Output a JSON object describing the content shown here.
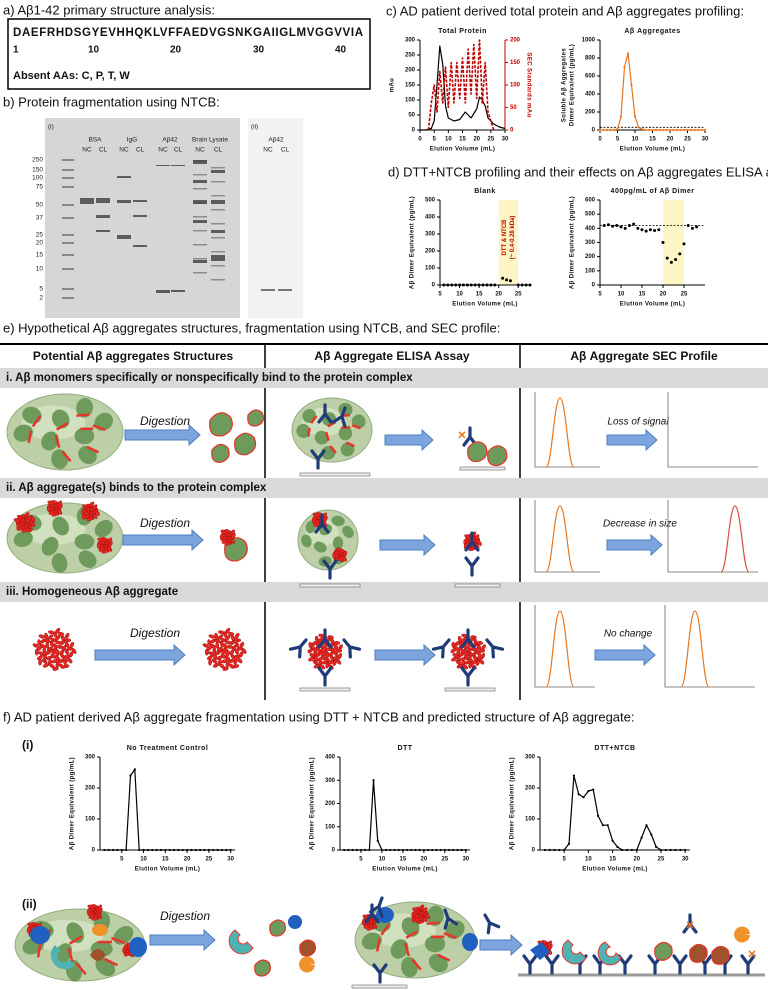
{
  "panel_a": {
    "title": "a) Aβ1-42 primary structure analysis:",
    "sequence": "DAEFRHDSGYEVHHQKLVFFAEDVGSNKGAIIGLMVGGVVIA",
    "positions": [
      "1",
      "10",
      "20",
      "30",
      "40"
    ],
    "absent": "Absent AAs: C, P, T, W"
  },
  "panel_b": {
    "title": "b) Protein fragmentation using NTCB:",
    "gel_i": {
      "label": "(i)",
      "groups": [
        "BSA",
        "IgG",
        "Aβ42",
        "Brain Lysate"
      ],
      "lanes": [
        "NC",
        "CL"
      ],
      "ladder": [
        "250",
        "150",
        "100",
        "75",
        "50",
        "37",
        "25",
        "20",
        "15",
        "10",
        "5",
        "2"
      ]
    },
    "gel_ii": {
      "label": "(ii)",
      "group": "Aβ42",
      "lanes": [
        "NC",
        "CL"
      ]
    }
  },
  "panel_c": {
    "title": "c) AD patient derived total protein and Aβ aggregates profiling:"
  },
  "panel_d": {
    "title": "d) DTT+NTCB profiling and their effects on Aβ aggregates ELISA assay:"
  },
  "panel_e": {
    "title": "e) Hypothetical Aβ aggregates structures, fragmentation using NTCB, and SEC profile:",
    "headers": [
      "Potential  Aβ aggregates Structures",
      "Aβ Aggregate ELISA Assay",
      "Aβ Aggregate SEC Profile"
    ],
    "rows": [
      {
        "title": "i. Aβ monomers specifically or nonspecifically bind to the protein complex",
        "digestion": "Digestion",
        "sec_note": "Loss of signal"
      },
      {
        "title": "ii. Aβ aggregate(s) binds to the protein complex",
        "digestion": "Digestion",
        "sec_note": "Decrease in size"
      },
      {
        "title": "iii. Homogeneous Aβ aggregate",
        "digestion": "Digestion",
        "sec_note": "No change"
      }
    ]
  },
  "panel_f": {
    "title": "f) AD patient derived Aβ aggregate fragmentation using DTT + NTCB and predicted structure of Aβ aggregate:",
    "sub_i": "(i)",
    "sub_ii": "(ii)",
    "digestion": "Digestion"
  },
  "chart_data": [
    {
      "type": "line",
      "title": "Total Protein",
      "xlabel": "Elution Volume (mL)",
      "ylabel": "mAu",
      "y2label": "SEC Standards mAu",
      "xlim": [
        0,
        30
      ],
      "xticks": [
        0,
        5,
        10,
        15,
        20,
        25,
        30
      ],
      "ylim": [
        0,
        300
      ],
      "yticks": [
        0,
        50,
        100,
        150,
        200,
        250,
        300
      ],
      "y2lim": [
        0,
        200
      ],
      "y2ticks": [
        0,
        50,
        100,
        150,
        200
      ],
      "series": [
        {
          "name": "Total Protein",
          "color": "#000000",
          "x": [
            0,
            2,
            4,
            5,
            6,
            7,
            8,
            9,
            10,
            12,
            14,
            16,
            18,
            20,
            21,
            22,
            23,
            24,
            26,
            28,
            30
          ],
          "values": [
            0,
            0,
            5,
            30,
            150,
            280,
            220,
            80,
            40,
            30,
            35,
            60,
            40,
            70,
            110,
            100,
            80,
            40,
            20,
            10,
            5
          ]
        },
        {
          "name": "SEC Standards",
          "color": "#c00000",
          "style": "dashed",
          "axis": "y2",
          "x": [
            3,
            4,
            5,
            6,
            7,
            8,
            9,
            10,
            11,
            12,
            13,
            14,
            15,
            16,
            17,
            18,
            19,
            20,
            21,
            22,
            23,
            24,
            25,
            26
          ],
          "values": [
            0,
            60,
            100,
            40,
            130,
            60,
            140,
            50,
            150,
            60,
            150,
            70,
            160,
            60,
            180,
            80,
            190,
            70,
            200,
            60,
            150,
            40,
            20,
            0
          ]
        }
      ]
    },
    {
      "type": "line",
      "title": "Aβ Aggregates",
      "xlabel": "Elution Volume (mL)",
      "ylabel": [
        "Soluble Aβ Aggregates",
        "Dimer Equivalent (pg/mL)"
      ],
      "xlim": [
        0,
        30
      ],
      "xticks": [
        0,
        5,
        10,
        15,
        20,
        25,
        30
      ],
      "ylim": [
        0,
        1000
      ],
      "yticks": [
        0,
        200,
        400,
        600,
        800,
        1000
      ],
      "hline": 30,
      "markers": true,
      "series": [
        {
          "name": "Aβ Aggregates",
          "color": "#e87722",
          "x": [
            0,
            1,
            2,
            3,
            4,
            5,
            6,
            7,
            8,
            9,
            10,
            11,
            12,
            13,
            14,
            15,
            16,
            17,
            18,
            19,
            20,
            21,
            22,
            23,
            24,
            25,
            26,
            27,
            28,
            29,
            30
          ],
          "values": [
            0,
            0,
            0,
            0,
            0,
            10,
            150,
            700,
            850,
            500,
            150,
            30,
            10,
            0,
            0,
            0,
            0,
            0,
            0,
            0,
            0,
            0,
            0,
            0,
            0,
            0,
            0,
            0,
            0,
            0,
            0
          ]
        }
      ]
    },
    {
      "type": "scatter",
      "title": "Blank",
      "xlabel": "Elution Volume (mL)",
      "ylabel": "Aβ Dimer Equivalent (pg/mL)",
      "xlim": [
        5,
        28
      ],
      "xticks": [
        5,
        10,
        15,
        20,
        25
      ],
      "ylim": [
        0,
        500
      ],
      "yticks": [
        0,
        100,
        200,
        300,
        400,
        500
      ],
      "shade": [
        20,
        25
      ],
      "annotation": [
        "DTT & NTCB",
        "(~ 0.4-0.28 kDa)"
      ],
      "series": [
        {
          "name": "Blank",
          "color": "#000000",
          "x": [
            6,
            7,
            8,
            9,
            10,
            11,
            12,
            13,
            14,
            15,
            16,
            17,
            18,
            19,
            21,
            22,
            23,
            25,
            26,
            27,
            28
          ],
          "values": [
            0,
            0,
            0,
            0,
            0,
            0,
            0,
            0,
            0,
            0,
            0,
            0,
            0,
            0,
            40,
            30,
            25,
            0,
            0,
            0,
            0
          ]
        }
      ]
    },
    {
      "type": "scatter",
      "title": "400pg/mL of Aβ Dimer",
      "xlabel": "Elution Volume (mL)",
      "ylabel": "Aβ Dimer Equivalent (pg/mL)",
      "xlim": [
        5,
        30
      ],
      "xticks": [
        5,
        10,
        15,
        20,
        25
      ],
      "ylim": [
        0,
        600
      ],
      "yticks": [
        0,
        100,
        200,
        300,
        400,
        500,
        600
      ],
      "shade": [
        20,
        25
      ],
      "hline": 420,
      "series": [
        {
          "name": "400pg/mL of Aβ Dimer",
          "color": "#000000",
          "x": [
            6,
            7,
            8,
            9,
            10,
            11,
            12,
            13,
            14,
            15,
            16,
            17,
            18,
            19,
            20,
            21,
            22,
            23,
            24,
            25,
            26,
            27,
            28
          ],
          "values": [
            420,
            425,
            415,
            420,
            410,
            400,
            420,
            430,
            400,
            390,
            380,
            390,
            385,
            390,
            300,
            190,
            160,
            180,
            220,
            290,
            420,
            400,
            410
          ]
        }
      ]
    },
    {
      "type": "line",
      "title": "No Treatment Control",
      "xlabel": "Elution Volume (mL)",
      "ylabel": "Aβ Dimer Equivalent (pg/mL)",
      "markers": true,
      "xlim": [
        0,
        31
      ],
      "xticks": [
        5,
        10,
        15,
        20,
        25,
        30
      ],
      "ylim": [
        0,
        300
      ],
      "yticks": [
        0,
        100,
        200,
        300
      ],
      "series": [
        {
          "name": "No Treatment Control",
          "color": "#000000",
          "x": [
            1,
            2,
            3,
            4,
            5,
            6,
            7,
            8,
            9,
            10,
            11,
            12,
            13,
            14,
            15,
            16,
            17,
            18,
            19,
            20,
            21,
            22,
            23,
            24,
            25,
            26,
            27,
            28,
            29,
            30
          ],
          "values": [
            0,
            0,
            0,
            0,
            0,
            0,
            240,
            260,
            0,
            0,
            0,
            0,
            0,
            0,
            0,
            0,
            0,
            0,
            0,
            0,
            0,
            0,
            0,
            0,
            0,
            0,
            0,
            0,
            0,
            0
          ]
        }
      ]
    },
    {
      "type": "line",
      "title": "DTT",
      "xlabel": "Elution Volume (mL)",
      "ylabel": "Aβ Dimer Equivalent (pg/mL)",
      "markers": true,
      "xlim": [
        0,
        31
      ],
      "xticks": [
        5,
        10,
        15,
        20,
        25,
        30
      ],
      "ylim": [
        0,
        400
      ],
      "yticks": [
        0,
        100,
        200,
        300,
        400
      ],
      "series": [
        {
          "name": "DTT",
          "color": "#000000",
          "x": [
            1,
            2,
            3,
            4,
            5,
            6,
            7,
            8,
            9,
            10,
            11,
            12,
            13,
            14,
            15,
            16,
            17,
            18,
            19,
            20,
            21,
            22,
            23,
            24,
            25,
            26,
            27,
            28,
            29,
            30
          ],
          "values": [
            0,
            0,
            0,
            0,
            0,
            0,
            0,
            300,
            40,
            0,
            0,
            0,
            0,
            0,
            0,
            0,
            0,
            0,
            0,
            0,
            0,
            0,
            0,
            0,
            0,
            0,
            0,
            0,
            0,
            0
          ]
        }
      ]
    },
    {
      "type": "line",
      "title": "DTT+NTCB",
      "xlabel": "Elution Volume (mL)",
      "ylabel": "Aβ Dimer Equivalent (pg/mL)",
      "markers": true,
      "xlim": [
        0,
        31
      ],
      "xticks": [
        5,
        10,
        15,
        20,
        25,
        30
      ],
      "ylim": [
        0,
        300
      ],
      "yticks": [
        0,
        100,
        200,
        300
      ],
      "series": [
        {
          "name": "DTT+NTCB",
          "color": "#000000",
          "x": [
            1,
            2,
            3,
            4,
            5,
            6,
            7,
            8,
            9,
            10,
            11,
            12,
            13,
            14,
            15,
            16,
            17,
            18,
            19,
            20,
            21,
            22,
            23,
            24,
            25,
            26,
            27,
            28,
            29,
            30
          ],
          "values": [
            0,
            0,
            0,
            0,
            0,
            20,
            240,
            180,
            170,
            190,
            195,
            110,
            80,
            80,
            30,
            10,
            0,
            0,
            0,
            0,
            40,
            80,
            50,
            10,
            0,
            0,
            0,
            0,
            0,
            0
          ]
        }
      ]
    }
  ]
}
